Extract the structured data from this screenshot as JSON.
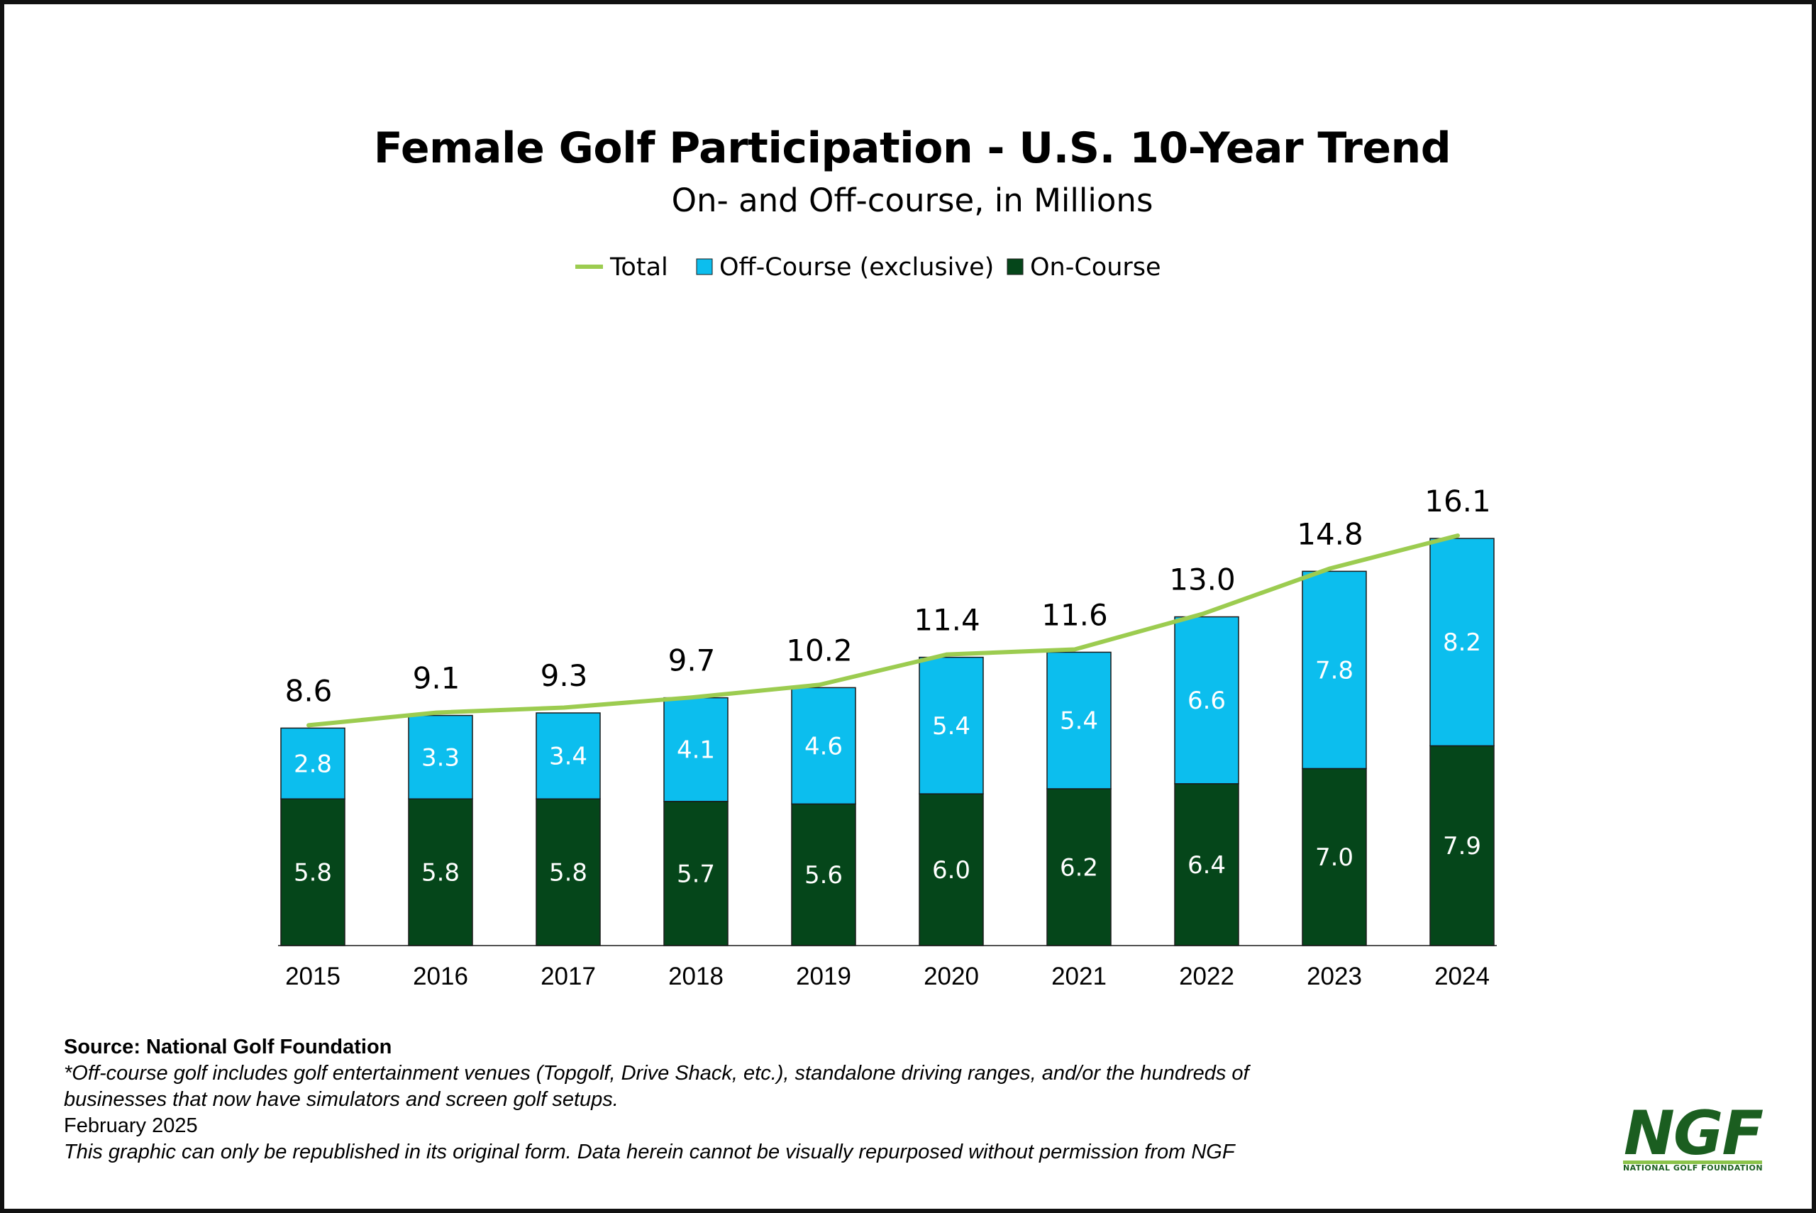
{
  "chart_data": {
    "type": "bar",
    "stacked": true,
    "title": "Female Golf Participation - U.S. 10-Year Trend",
    "subtitle": "On- and Off-course, in Millions",
    "categories": [
      "2015",
      "2016",
      "2017",
      "2018",
      "2019",
      "2020",
      "2021",
      "2022",
      "2023",
      "2024"
    ],
    "series": [
      {
        "name": "On-Course",
        "type": "bar",
        "color": "#05461a",
        "values": [
          5.8,
          5.8,
          5.8,
          5.7,
          5.6,
          6.0,
          6.2,
          6.4,
          7.0,
          7.9
        ],
        "labels": [
          "5.8",
          "5.8",
          "5.8",
          "5.7",
          "5.6",
          "6.0",
          "6.2",
          "6.4",
          "7.0",
          "7.9"
        ]
      },
      {
        "name": "Off-Course (exclusive)",
        "type": "bar",
        "color": "#0cbeee",
        "values": [
          2.8,
          3.3,
          3.4,
          4.1,
          4.6,
          5.4,
          5.4,
          6.6,
          7.8,
          8.2
        ],
        "labels": [
          "2.8",
          "3.3",
          "3.4",
          "4.1",
          "4.6",
          "5.4",
          "5.4",
          "6.6",
          "7.8",
          "8.2"
        ]
      },
      {
        "name": "Total",
        "type": "line",
        "color": "#9ccc50",
        "values": [
          8.6,
          9.1,
          9.3,
          9.7,
          10.2,
          11.4,
          11.6,
          13.0,
          14.8,
          16.1
        ],
        "labels": [
          "8.6",
          "9.1",
          "9.3",
          "9.7",
          "10.2",
          "11.4",
          "11.6",
          "13.0",
          "14.8",
          "16.1"
        ]
      }
    ],
    "legend": {
      "position": "top",
      "items": [
        "Total",
        "Off-Course (exclusive)",
        "On-Course"
      ]
    },
    "grid": false,
    "ylim": [
      0,
      16.5
    ],
    "data_labels": true
  },
  "footer": {
    "source": "Source: National Golf Foundation",
    "note_line1": "*Off-course golf includes golf entertainment venues (Topgolf, Drive Shack, etc.), standalone driving ranges, and/or the hundreds of",
    "note_line2": "businesses that now have simulators and screen golf setups.",
    "date": "February 2025",
    "disclaimer": "This graphic can only be republished in its original form. Data herein cannot be visually repurposed without permission from NGF"
  },
  "logo": {
    "text": "NGF",
    "subtext": "NATIONAL GOLF FOUNDATION"
  },
  "colors": {
    "on_course": "#05461a",
    "off_course": "#0cbeee",
    "total_line": "#9ccc50",
    "logo_green": "#1b5e20"
  }
}
